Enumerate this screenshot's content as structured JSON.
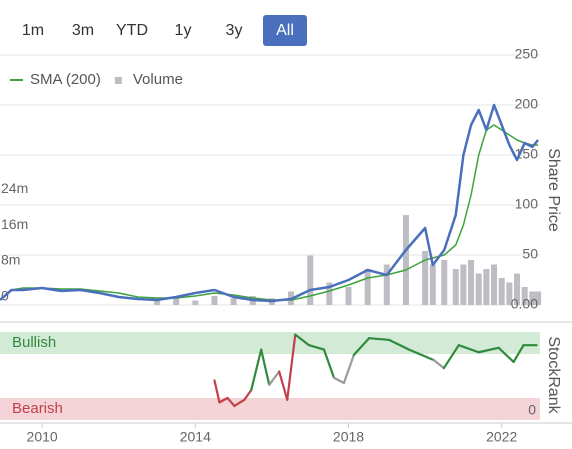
{
  "controls": {
    "buttons": [
      "1m",
      "3m",
      "YTD",
      "1y",
      "3y",
      "All"
    ],
    "active": 5
  },
  "chart_data": [
    {
      "type": "line",
      "y_label": "Share Price",
      "legend": "top-left",
      "grid": true,
      "x": [
        2008.9,
        2009.2,
        2009.5,
        2010,
        2010.5,
        2011,
        2011.5,
        2012,
        2012.5,
        2013,
        2013.5,
        2014,
        2014.5,
        2015,
        2015.5,
        2016,
        2016.5,
        2017,
        2017.5,
        2018,
        2018.5,
        2019,
        2019.5,
        2020,
        2020.2,
        2020.5,
        2020.8,
        2021,
        2021.2,
        2021.4,
        2021.6,
        2021.8,
        2022,
        2022.2,
        2022.4,
        2022.6,
        2022.8,
        2022.95
      ],
      "xlim": [
        2008.9,
        2023.0
      ],
      "ylim": [
        0,
        250
      ],
      "yticks": [
        {
          "value": 0,
          "label": "0.00"
        },
        50,
        100,
        150,
        200,
        250
      ],
      "y2lim": [
        0,
        55600000
      ],
      "y2ticks": [
        0,
        {
          "value": 8000000,
          "label": "8m"
        },
        {
          "value": 16000000,
          "label": "16m"
        },
        {
          "value": 24000000,
          "label": "24m"
        }
      ],
      "series": [
        {
          "color": "#4a6fbd",
          "values": [
            5,
            15,
            15,
            17,
            14,
            15,
            12,
            8,
            6,
            5,
            8,
            12,
            15,
            8,
            5,
            4,
            6,
            15,
            18,
            25,
            35,
            30,
            55,
            77,
            40,
            55,
            90,
            150,
            180,
            195,
            175,
            200,
            180,
            160,
            145,
            162,
            158,
            165
          ]
        },
        {
          "name": "SMA (200)",
          "color": "#3ea23e",
          "values": [
            null,
            15,
            17,
            17,
            16,
            16,
            14,
            12,
            8,
            7,
            7,
            9,
            12,
            10,
            7,
            5,
            5,
            9,
            14,
            20,
            27,
            30,
            35,
            45,
            47,
            50,
            60,
            80,
            110,
            150,
            175,
            180,
            175,
            170,
            165,
            162,
            160,
            160
          ]
        },
        {
          "name": "Volume",
          "color": "#bdbdc3",
          "axis": "y2",
          "type": "bar",
          "values": [
            null,
            null,
            null,
            null,
            null,
            null,
            null,
            null,
            null,
            1000000,
            1500000,
            1000000,
            2000000,
            1500000,
            2000000,
            1500000,
            3000000,
            11000000,
            5000000,
            4000000,
            8000000,
            9000000,
            20000000,
            12000000,
            9000000,
            10000000,
            8000000,
            9000000,
            10000000,
            7000000,
            8000000,
            9000000,
            6000000,
            5000000,
            7000000,
            4000000,
            3000000,
            3000000
          ]
        }
      ]
    },
    {
      "type": "line",
      "y_label": "StockRank",
      "color": "#9a9a9a",
      "x": [
        2014.5,
        2014.63,
        2014.84,
        2015.02,
        2015.28,
        2015.46,
        2015.72,
        2015.93,
        2016.19,
        2016.4,
        2016.61,
        2016.97,
        2017.36,
        2017.62,
        2017.88,
        2018.14,
        2018.54,
        2019.06,
        2019.58,
        2020.23,
        2020.49,
        2020.88,
        2021.4,
        2021.92,
        2022.31,
        2022.57,
        2022.91
      ],
      "values": [
        45,
        20,
        25,
        16,
        23,
        34,
        80,
        40,
        55,
        23,
        97,
        85,
        80,
        48,
        42,
        74,
        93,
        91,
        80,
        68,
        59,
        85,
        77,
        82,
        66,
        85,
        85
      ],
      "xlim": [
        2008.9,
        2023.0
      ],
      "xticks": [
        2010,
        2014,
        2018,
        2022
      ],
      "ylim": [
        0,
        100
      ],
      "yticks": [
        0
      ],
      "bands": [
        {
          "label": "Bullish",
          "from": 75,
          "to": 100,
          "color": "#d3ead6",
          "text_color": "#2f8a3c"
        },
        {
          "label": "Bearish",
          "from": 0,
          "to": 25,
          "color": "#f4d4d7",
          "text_color": "#c2404b"
        }
      ]
    }
  ]
}
